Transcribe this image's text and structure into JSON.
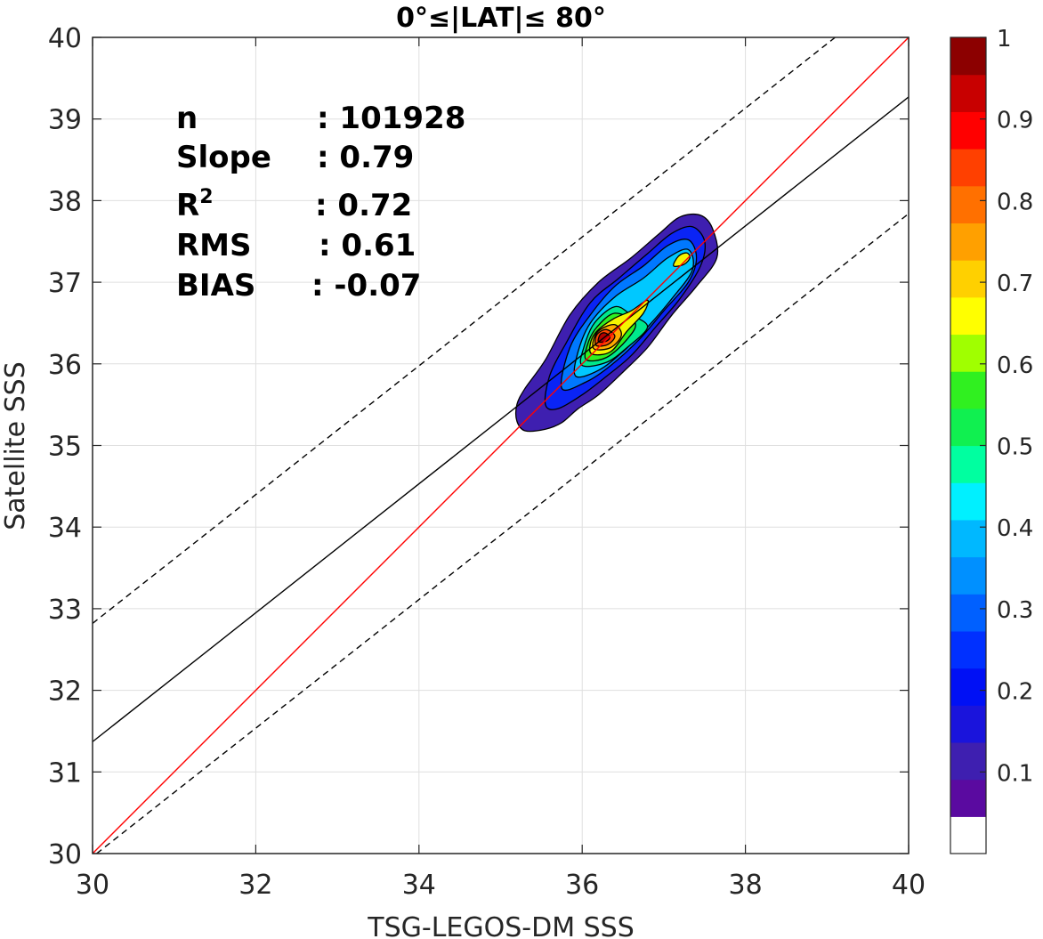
{
  "chart_data": {
    "type": "heatmap",
    "title": "0°≤|LAT|≤ 80°",
    "xlabel": "TSG-LEGOS-DM SSS",
    "ylabel": "Satellite SSS",
    "xlim": [
      30,
      40
    ],
    "ylim": [
      30,
      40
    ],
    "x_ticks": [
      "30",
      "32",
      "34",
      "36",
      "38",
      "40"
    ],
    "y_ticks": [
      "30",
      "31",
      "32",
      "33",
      "34",
      "35",
      "36",
      "37",
      "38",
      "39",
      "40"
    ],
    "grid": true,
    "stats": [
      {
        "label": "n",
        "value": ": 101928"
      },
      {
        "label": "Slope",
        "value": ": 0.79"
      },
      {
        "label": "R",
        "sup": "2",
        "value": ": 0.72"
      },
      {
        "label": "RMS",
        "value": ": 0.61"
      },
      {
        "label": "BIAS",
        "value": ": -0.07"
      }
    ],
    "lines": {
      "one_to_one": {
        "color": "#ff0000",
        "points": [
          [
            30,
            30
          ],
          [
            40,
            40
          ]
        ]
      },
      "regression": {
        "color": "#000000",
        "points": [
          [
            30,
            31.37
          ],
          [
            40,
            39.27
          ]
        ]
      },
      "upper_bound": {
        "color": "#000000",
        "dashed": true,
        "points": [
          [
            30,
            32.82
          ],
          [
            39.1,
            40
          ]
        ]
      },
      "lower_bound": {
        "color": "#000000",
        "dashed": true,
        "points": [
          [
            30.05,
            30
          ],
          [
            40,
            37.84
          ]
        ]
      }
    },
    "density_contours": [
      {
        "level": 0.05,
        "color": "#3e1fb0",
        "points": [
          [
            35.2,
            35.5
          ],
          [
            35.2,
            35.3
          ],
          [
            35.3,
            35.18
          ],
          [
            35.55,
            35.2
          ],
          [
            35.75,
            35.28
          ],
          [
            35.95,
            35.45
          ],
          [
            36.2,
            35.62
          ],
          [
            36.5,
            35.9
          ],
          [
            36.8,
            36.2
          ],
          [
            37.1,
            36.6
          ],
          [
            37.4,
            36.95
          ],
          [
            37.65,
            37.3
          ],
          [
            37.6,
            37.65
          ],
          [
            37.45,
            37.82
          ],
          [
            37.2,
            37.8
          ],
          [
            36.95,
            37.6
          ],
          [
            36.6,
            37.3
          ],
          [
            36.2,
            37.0
          ],
          [
            35.85,
            36.6
          ],
          [
            35.55,
            36.05
          ],
          [
            35.3,
            35.7
          ]
        ]
      },
      {
        "level": 0.15,
        "color": "#0a24f5",
        "points": [
          [
            35.55,
            35.5
          ],
          [
            35.7,
            35.45
          ],
          [
            36.0,
            35.62
          ],
          [
            36.3,
            35.85
          ],
          [
            36.6,
            36.1
          ],
          [
            36.9,
            36.45
          ],
          [
            37.2,
            36.8
          ],
          [
            37.45,
            37.2
          ],
          [
            37.5,
            37.5
          ],
          [
            37.35,
            37.68
          ],
          [
            37.1,
            37.6
          ],
          [
            36.8,
            37.35
          ],
          [
            36.45,
            37.05
          ],
          [
            36.1,
            36.75
          ],
          [
            35.8,
            36.25
          ],
          [
            35.6,
            35.85
          ]
        ]
      },
      {
        "level": 0.25,
        "color": "#0078ff",
        "points": [
          [
            35.75,
            35.7
          ],
          [
            36.05,
            35.78
          ],
          [
            36.35,
            35.98
          ],
          [
            36.7,
            36.3
          ],
          [
            37.0,
            36.65
          ],
          [
            37.3,
            37.0
          ],
          [
            37.4,
            37.3
          ],
          [
            37.3,
            37.52
          ],
          [
            37.05,
            37.45
          ],
          [
            36.75,
            37.2
          ],
          [
            36.4,
            36.95
          ],
          [
            36.1,
            36.6
          ],
          [
            35.85,
            36.2
          ]
        ]
      },
      {
        "level": 0.35,
        "color": "#00c8ff",
        "points": [
          [
            35.92,
            35.85
          ],
          [
            36.2,
            35.92
          ],
          [
            36.5,
            36.15
          ],
          [
            36.8,
            36.45
          ],
          [
            37.1,
            36.8
          ],
          [
            37.35,
            37.15
          ],
          [
            37.3,
            37.4
          ],
          [
            37.05,
            37.3
          ],
          [
            36.75,
            37.05
          ],
          [
            36.4,
            36.82
          ],
          [
            36.1,
            36.5
          ],
          [
            35.95,
            36.15
          ]
        ]
      },
      {
        "level": 0.45,
        "color": "#00e88c",
        "points": [
          [
            36.0,
            35.98
          ],
          [
            36.3,
            36.02
          ],
          [
            36.55,
            36.2
          ],
          [
            36.8,
            36.45
          ],
          [
            36.6,
            36.6
          ],
          [
            36.4,
            36.7
          ],
          [
            36.15,
            36.5
          ],
          [
            36.02,
            36.2
          ]
        ]
      },
      {
        "level": 0.55,
        "color": "#30f020",
        "points": [
          [
            36.05,
            36.05
          ],
          [
            36.3,
            36.08
          ],
          [
            36.55,
            36.3
          ],
          [
            36.65,
            36.5
          ],
          [
            36.4,
            36.62
          ],
          [
            36.18,
            36.45
          ],
          [
            36.07,
            36.25
          ]
        ]
      },
      {
        "level": 0.65,
        "color": "#f5f500",
        "points": [
          [
            36.12,
            36.12
          ],
          [
            36.35,
            36.15
          ],
          [
            36.55,
            36.4
          ],
          [
            36.75,
            36.62
          ],
          [
            36.8,
            36.78
          ],
          [
            36.6,
            36.65
          ],
          [
            36.38,
            36.55
          ],
          [
            36.18,
            36.4
          ],
          [
            36.1,
            36.25
          ]
        ]
      },
      {
        "level": 0.75,
        "color": "#ffaa00",
        "points": [
          [
            36.15,
            36.18
          ],
          [
            36.35,
            36.2
          ],
          [
            36.48,
            36.35
          ],
          [
            36.4,
            36.48
          ],
          [
            36.22,
            36.42
          ],
          [
            36.14,
            36.3
          ]
        ]
      },
      {
        "level": 0.85,
        "color": "#ff4800",
        "points": [
          [
            36.18,
            36.22
          ],
          [
            36.32,
            36.24
          ],
          [
            36.4,
            36.34
          ],
          [
            36.3,
            36.42
          ],
          [
            36.2,
            36.38
          ],
          [
            36.16,
            36.3
          ]
        ]
      },
      {
        "level": 0.95,
        "color": "#b40000",
        "points": [
          [
            36.2,
            36.27
          ],
          [
            36.3,
            36.28
          ],
          [
            36.34,
            36.33
          ],
          [
            36.28,
            36.38
          ],
          [
            36.22,
            36.36
          ]
        ]
      },
      {
        "level": 0.65,
        "color": "#f5f500",
        "points": [
          [
            37.12,
            37.2
          ],
          [
            37.25,
            37.22
          ],
          [
            37.32,
            37.3
          ],
          [
            37.28,
            37.36
          ],
          [
            37.18,
            37.32
          ]
        ]
      }
    ],
    "colorbar": {
      "ticks": [
        "0.1",
        "0.2",
        "0.3",
        "0.4",
        "0.5",
        "0.6",
        "0.7",
        "0.8",
        "0.9",
        "1"
      ],
      "range": [
        0,
        1
      ],
      "colors": [
        "#ffffff",
        "#5a0aa0",
        "#3e1fb0",
        "#1a14dc",
        "#0010f5",
        "#0030ff",
        "#0060ff",
        "#0090ff",
        "#00b8ff",
        "#00f0ff",
        "#00ffa0",
        "#10f050",
        "#30f020",
        "#a0ff00",
        "#ffff00",
        "#ffd000",
        "#ffa000",
        "#ff7000",
        "#ff4000",
        "#ff0000",
        "#c80000",
        "#8c0000"
      ]
    }
  }
}
